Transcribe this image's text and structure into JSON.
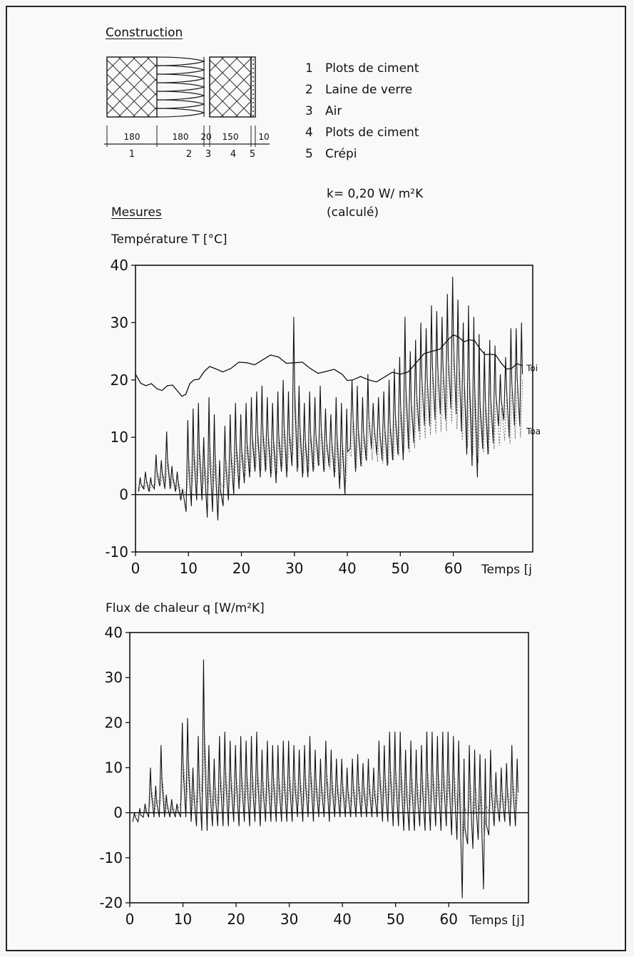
{
  "construction": {
    "heading": "Construction",
    "dims": [
      "180",
      "180",
      "20",
      "150",
      "10"
    ],
    "layer_numbers": [
      "1",
      "2",
      "3",
      "4",
      "5"
    ],
    "legend": [
      {
        "num": "1",
        "label": "Plots de ciment"
      },
      {
        "num": "2",
        "label": "Laine de verre"
      },
      {
        "num": "3",
        "label": "Air"
      },
      {
        "num": "4",
        "label": "Plots de ciment"
      },
      {
        "num": "5",
        "label": "Crépi"
      }
    ],
    "k_value": "k= 0,20 W/ m²K",
    "k_note": "(calculé)"
  },
  "measures_heading": "Mesures",
  "chart_data": [
    {
      "type": "line",
      "title": "Température T [°C]",
      "xlabel": "Temps [j",
      "xlim": [
        0,
        75
      ],
      "ylim": [
        -10,
        40
      ],
      "xticks": [
        "0",
        "10",
        "20",
        "30",
        "40",
        "50",
        "60"
      ],
      "yticks": [
        "40",
        "30",
        "20",
        "10",
        "0",
        "-10"
      ],
      "series": [
        {
          "name": "Toi",
          "kind": "smooth",
          "x": [
            0,
            2,
            4,
            6,
            8,
            9.5,
            11,
            13,
            15,
            18,
            21,
            24,
            27,
            30,
            33,
            36,
            39,
            41,
            44,
            47,
            50,
            53,
            56,
            59,
            61,
            63,
            65,
            67,
            69,
            71,
            73
          ],
          "y": [
            21,
            19,
            18.5,
            19,
            18,
            17.5,
            20,
            21.5,
            22,
            22,
            23,
            23.5,
            24,
            23,
            22,
            21.5,
            21,
            20,
            20,
            20.5,
            21,
            23,
            25,
            27,
            27.5,
            27,
            25.5,
            24.5,
            23,
            22,
            22.5
          ]
        },
        {
          "name": "Toa",
          "kind": "oscillating",
          "days": [
            1,
            2,
            3,
            4,
            5,
            6,
            7,
            8,
            9,
            10,
            11,
            12,
            13,
            14,
            15,
            16,
            17,
            18,
            19,
            20,
            21,
            22,
            23,
            24,
            25,
            26,
            27,
            28,
            29,
            30,
            31,
            32,
            33,
            34,
            35,
            36,
            37,
            38,
            39,
            40,
            41,
            42,
            43,
            44,
            45,
            46,
            47,
            48,
            49,
            50,
            51,
            52,
            53,
            54,
            55,
            56,
            57,
            58,
            59,
            60,
            61,
            62,
            63,
            64,
            65,
            66,
            67,
            68,
            69,
            70,
            71,
            72,
            73
          ],
          "max": [
            3,
            4,
            3,
            7,
            6,
            11,
            5,
            4,
            1,
            13,
            15,
            16,
            10,
            17,
            14,
            6,
            12,
            14,
            16,
            14,
            16,
            17,
            18,
            19,
            17,
            16,
            18,
            20,
            18,
            31,
            19,
            16,
            18,
            17,
            19,
            15,
            14,
            17,
            16,
            15,
            20,
            19,
            17,
            21,
            16,
            17,
            18,
            20,
            22,
            24,
            31,
            25,
            27,
            30,
            29,
            33,
            32,
            31,
            35,
            38,
            34,
            30,
            33,
            31,
            28,
            25,
            27,
            26,
            21,
            24,
            29,
            29,
            30
          ],
          "min": [
            0.5,
            1,
            0.5,
            1,
            1.5,
            1,
            1,
            0.5,
            -1,
            -3,
            -2,
            -1,
            -1,
            -4,
            -3,
            -4.5,
            -2,
            -1,
            0,
            1,
            2,
            3,
            4,
            3,
            4,
            3,
            2,
            4,
            3,
            5,
            4,
            3,
            3,
            4,
            5,
            4,
            5,
            3,
            1,
            0,
            8,
            4,
            5,
            6,
            8,
            7,
            6,
            5,
            6,
            7,
            6,
            8,
            9,
            11,
            12,
            12,
            13,
            14,
            13,
            15,
            14,
            11,
            7,
            5,
            3,
            8,
            7,
            9,
            12,
            13,
            10,
            12,
            12
          ]
        }
      ]
    },
    {
      "type": "line",
      "title": "Flux de chaleur q [W/m²K]",
      "xlabel": "Temps [j]",
      "xlim": [
        0,
        75
      ],
      "ylim": [
        -20,
        40
      ],
      "xticks": [
        "0",
        "10",
        "20",
        "30",
        "40",
        "50",
        "60"
      ],
      "yticks": [
        "40",
        "30",
        "20",
        "10",
        "0",
        "-10",
        "-20"
      ],
      "series": [
        {
          "name": "",
          "kind": "oscillating",
          "days": [
            1,
            2,
            3,
            4,
            5,
            6,
            7,
            8,
            9,
            10,
            11,
            12,
            13,
            14,
            15,
            16,
            17,
            18,
            19,
            20,
            21,
            22,
            23,
            24,
            25,
            26,
            27,
            28,
            29,
            30,
            31,
            32,
            33,
            34,
            35,
            36,
            37,
            38,
            39,
            40,
            41,
            42,
            43,
            44,
            45,
            46,
            47,
            48,
            49,
            50,
            51,
            52,
            53,
            54,
            55,
            56,
            57,
            58,
            59,
            60,
            61,
            62,
            63,
            64,
            65,
            66,
            67,
            68,
            69,
            70,
            71,
            72,
            73
          ],
          "max": [
            0,
            1,
            2,
            10,
            6,
            15,
            4,
            3,
            2,
            20,
            21,
            10,
            17,
            34,
            15,
            12,
            17,
            18,
            16,
            15,
            17,
            16,
            17,
            18,
            14,
            16,
            15,
            15,
            16,
            16,
            15,
            14,
            15,
            17,
            14,
            12,
            16,
            14,
            12,
            12,
            10,
            12,
            13,
            11,
            12,
            10,
            16,
            15,
            18,
            18,
            18,
            14,
            16,
            14,
            15,
            18,
            18,
            17,
            18,
            18,
            17,
            16,
            12,
            15,
            14,
            13,
            12,
            14,
            9,
            10,
            11,
            15,
            12
          ],
          "min": [
            -2,
            -2,
            -1,
            -1,
            -1,
            -1,
            -1,
            -1,
            -1,
            -1,
            -1,
            -2,
            -3,
            -4,
            -4,
            -3,
            -3,
            -3,
            -3,
            -2,
            -3,
            -2,
            -3,
            -2,
            -3,
            -2,
            -2,
            -2,
            -2,
            -2,
            -2,
            -1,
            -2,
            -1,
            -2,
            -1,
            -1,
            -2,
            -1,
            -1,
            -1,
            -1,
            -1,
            -1,
            -1,
            -1,
            -1,
            -2,
            -2,
            -3,
            -3,
            -4,
            -4,
            -4,
            -3,
            -4,
            -4,
            -3,
            -4,
            -3,
            -5,
            -6,
            -19,
            -7,
            -8,
            -6,
            -17,
            -5,
            -3,
            -2,
            -2,
            -3,
            -3
          ]
        }
      ]
    }
  ],
  "series_labels": {
    "toi": "Toi",
    "toa": "Toa"
  }
}
